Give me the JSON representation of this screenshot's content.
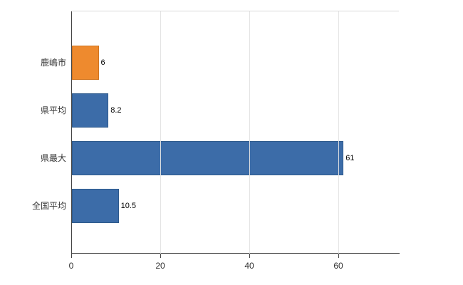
{
  "chart_data": {
    "type": "bar",
    "orientation": "horizontal",
    "title": "",
    "xlabel": "",
    "ylabel": "",
    "categories": [
      "鹿嶋市",
      "県平均",
      "県最大",
      "全国平均"
    ],
    "values": [
      6,
      8.2,
      61,
      10.5
    ],
    "value_labels": [
      "6",
      "8.2",
      "61",
      "10.5"
    ],
    "bar_colors": [
      "#ee8a2e",
      "#3c6ca8",
      "#3c6ca8",
      "#3c6ca8"
    ],
    "bar_border_colors": [
      "#cf7420",
      "#2e5a8c",
      "#2e5a8c",
      "#2e5a8c"
    ],
    "x_ticks": [
      0,
      20,
      40,
      60
    ],
    "x_tick_labels": [
      "0",
      "20",
      "40",
      "60"
    ],
    "xlim": [
      0,
      73.6
    ],
    "grid": "vertical",
    "legend": "none",
    "background": "#ffffff"
  }
}
